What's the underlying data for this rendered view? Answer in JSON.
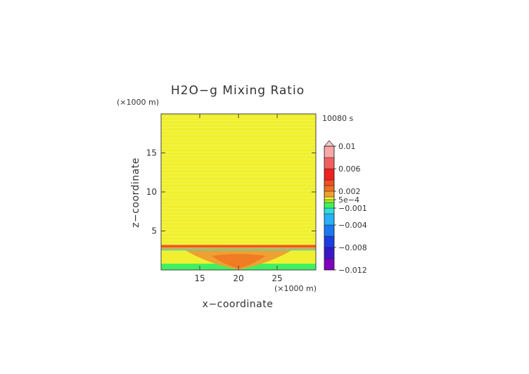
{
  "chart_data": {
    "type": "heatmap",
    "title": "H2O−g Mixing Ratio",
    "time_label": "10080 s",
    "xlabel": "x−coordinate",
    "ylabel": "z−coordinate",
    "x_unit": "(×1000 m)",
    "y_unit": "(×1000 m)",
    "xlim": [
      10,
      30
    ],
    "ylim": [
      0,
      20
    ],
    "x_ticks": [
      "15",
      "20",
      "25"
    ],
    "y_ticks": [
      "5",
      "10",
      "15"
    ],
    "x_tick_values": [
      15,
      20,
      25
    ],
    "y_tick_values": [
      5,
      10,
      15
    ],
    "colorbar": {
      "labels": [
        "0.01",
        "0.006",
        "0.002",
        "5e−4",
        "−0.001",
        "−0.004",
        "−0.008",
        "−0.012"
      ],
      "label_values": [
        0.01,
        0.006,
        0.002,
        0.0005,
        -0.001,
        -0.004,
        -0.008,
        -0.012
      ],
      "min": -0.012,
      "max": 0.01,
      "extend_top": true,
      "bands": [
        {
          "from": -0.012,
          "to": -0.01,
          "color": "#8000c0"
        },
        {
          "from": -0.01,
          "to": -0.008,
          "color": "#3a18c8"
        },
        {
          "from": -0.008,
          "to": -0.006,
          "color": "#1a3ee0"
        },
        {
          "from": -0.006,
          "to": -0.004,
          "color": "#1a78f0"
        },
        {
          "from": -0.004,
          "to": -0.002,
          "color": "#28b0f8"
        },
        {
          "from": -0.002,
          "to": -0.001,
          "color": "#30e0d8"
        },
        {
          "from": -0.001,
          "to": 0.0,
          "color": "#40f060"
        },
        {
          "from": 0.0,
          "to": 0.0005,
          "color": "#a8f020"
        },
        {
          "from": 0.0005,
          "to": 0.001,
          "color": "#f0f030"
        },
        {
          "from": 0.001,
          "to": 0.002,
          "color": "#f0a030"
        },
        {
          "from": 0.002,
          "to": 0.003,
          "color": "#f07020"
        },
        {
          "from": 0.003,
          "to": 0.004,
          "color": "#f05020"
        },
        {
          "from": 0.004,
          "to": 0.006,
          "color": "#f02020"
        },
        {
          "from": 0.006,
          "to": 0.008,
          "color": "#f06060"
        },
        {
          "from": 0.008,
          "to": 0.01,
          "color": "#f8a8a8"
        }
      ]
    },
    "field": [
      {
        "region": "background",
        "value": 0.0007
      },
      {
        "region": "surface_layer",
        "z_range": [
          0,
          0.8
        ],
        "value": -0.0005
      },
      {
        "region": "dome",
        "x_range": [
          13,
          27
        ],
        "z_range": [
          0.8,
          2.6
        ],
        "value": 0.0015
      },
      {
        "region": "dome_core",
        "x_range": [
          16.5,
          23.5
        ],
        "z_range": [
          0.2,
          1.8
        ],
        "value": 0.0025
      },
      {
        "region": "band_top",
        "z_range": [
          2.9,
          3.2
        ],
        "value": 0.003
      },
      {
        "region": "band_mid",
        "z_range": [
          2.65,
          2.9
        ],
        "value": 0.0015
      },
      {
        "region": "band_low",
        "z_range": [
          2.5,
          2.65
        ],
        "value": -0.0015
      }
    ]
  }
}
